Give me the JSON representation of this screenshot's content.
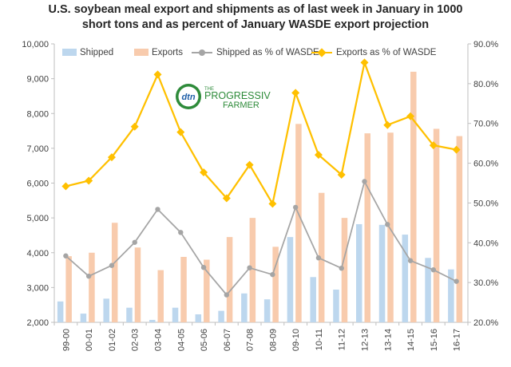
{
  "chart_data": {
    "type": "bar+line",
    "title_lines": [
      "U.S. soybean meal export and shipments as of last week in January in 1000",
      "short tons and as percent of January WASDE export projection"
    ],
    "categories": [
      "99-00",
      "00-01",
      "01-02",
      "02-03",
      "03-04",
      "04-05",
      "05-06",
      "06-07",
      "07-08",
      "08-09",
      "09-10",
      "10-11",
      "11-12",
      "12-13",
      "13-14",
      "14-15",
      "15-16",
      "16-17"
    ],
    "series": [
      {
        "name": "Shipped",
        "type": "bar",
        "axis": "left",
        "color": "#bdd7ee",
        "values": [
          2600,
          2250,
          2680,
          2420,
          2070,
          2420,
          2230,
          2330,
          2830,
          2660,
          4450,
          3300,
          2940,
          4820,
          4800,
          4520,
          3850,
          3520
        ]
      },
      {
        "name": "Exports",
        "type": "bar",
        "axis": "left",
        "color": "#f8cbad",
        "values": [
          3900,
          4000,
          4860,
          4150,
          3500,
          3880,
          3800,
          4450,
          5000,
          4170,
          7700,
          5720,
          5000,
          7430,
          7450,
          9200,
          7560,
          7350
        ]
      },
      {
        "name": "Shipped as % of WASDE",
        "type": "line",
        "axis": "right",
        "color": "#a5a5a5",
        "values": [
          36.7,
          31.6,
          34.3,
          40.1,
          48.4,
          42.6,
          33.8,
          26.9,
          33.7,
          32.0,
          48.9,
          36.2,
          33.6,
          55.4,
          44.6,
          35.5,
          33.2,
          30.3
        ]
      },
      {
        "name": "Exports as % of WASDE",
        "type": "line",
        "axis": "right",
        "color": "#ffc000",
        "values": [
          54.2,
          55.6,
          61.5,
          69.2,
          82.3,
          67.8,
          57.7,
          51.2,
          59.6,
          49.8,
          77.7,
          62.1,
          57.1,
          85.3,
          69.6,
          71.8,
          64.5,
          63.4
        ]
      }
    ],
    "y_left": {
      "min": 2000,
      "max": 10000,
      "step": 1000,
      "tick_labels": [
        "2,000",
        "3,000",
        "4,000",
        "5,000",
        "6,000",
        "7,000",
        "8,000",
        "9,000",
        "10,000"
      ]
    },
    "y_right": {
      "min": 20,
      "max": 90,
      "step": 10,
      "tick_labels": [
        "20.0%",
        "30.0%",
        "40.0%",
        "50.0%",
        "60.0%",
        "70.0%",
        "80.0%",
        "90.0%"
      ]
    },
    "grid": false,
    "legend_position": "top-left",
    "xlabel": "",
    "ylabel": ""
  },
  "logo": {
    "mark": "dtn",
    "line1": "THE",
    "line2": "PROGRESSIVE",
    "line3": "FARMER"
  }
}
